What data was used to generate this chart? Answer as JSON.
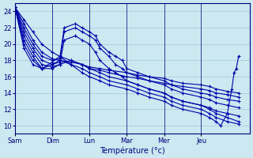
{
  "xlabel": "Température (°c)",
  "background_color": "#cce8f0",
  "grid_color": "#9fc8d8",
  "line_color": "#0000aa",
  "marker": "+",
  "markersize": 3,
  "linewidth": 0.8,
  "ylim": [
    9,
    25
  ],
  "yticks": [
    10,
    12,
    14,
    16,
    18,
    20,
    22,
    24
  ],
  "xlabel_fontsize": 7,
  "tick_fontsize": 6,
  "day_labels": [
    "Sam",
    "Dim",
    "Lun",
    "Mar",
    "Mer",
    "Jeu"
  ],
  "day_x": [
    0,
    0.167,
    0.333,
    0.5,
    0.667,
    0.833
  ],
  "series": [
    {
      "points": [
        [
          0,
          24.5
        ],
        [
          0.04,
          23.0
        ],
        [
          0.08,
          21.5
        ],
        [
          0.12,
          20.0
        ],
        [
          0.167,
          19.0
        ],
        [
          0.2,
          18.5
        ],
        [
          0.25,
          18.0
        ],
        [
          0.3,
          17.5
        ],
        [
          0.333,
          17.0
        ],
        [
          0.38,
          16.8
        ],
        [
          0.42,
          16.5
        ],
        [
          0.5,
          16.0
        ],
        [
          0.55,
          15.8
        ],
        [
          0.6,
          15.5
        ],
        [
          0.667,
          15.2
        ],
        [
          0.7,
          15.0
        ],
        [
          0.75,
          14.8
        ],
        [
          0.833,
          14.5
        ],
        [
          0.87,
          14.3
        ],
        [
          0.9,
          14.0
        ],
        [
          0.95,
          13.8
        ],
        [
          1.0,
          13.5
        ]
      ]
    },
    {
      "points": [
        [
          0,
          24.5
        ],
        [
          0.04,
          22.5
        ],
        [
          0.08,
          20.5
        ],
        [
          0.12,
          19.0
        ],
        [
          0.167,
          18.2
        ],
        [
          0.2,
          18.0
        ],
        [
          0.25,
          17.8
        ],
        [
          0.3,
          17.5
        ],
        [
          0.333,
          17.2
        ],
        [
          0.38,
          17.0
        ],
        [
          0.42,
          16.8
        ],
        [
          0.5,
          16.5
        ],
        [
          0.55,
          16.2
        ],
        [
          0.6,
          16.0
        ],
        [
          0.667,
          15.8
        ],
        [
          0.7,
          15.5
        ],
        [
          0.75,
          15.2
        ],
        [
          0.833,
          15.0
        ],
        [
          0.87,
          14.8
        ],
        [
          0.9,
          14.5
        ],
        [
          0.95,
          14.2
        ],
        [
          1.0,
          14.0
        ]
      ]
    },
    {
      "points": [
        [
          0,
          24.5
        ],
        [
          0.04,
          22.0
        ],
        [
          0.08,
          20.0
        ],
        [
          0.12,
          18.5
        ],
        [
          0.167,
          18.0
        ],
        [
          0.2,
          18.2
        ],
        [
          0.22,
          22.0
        ],
        [
          0.27,
          22.5
        ],
        [
          0.3,
          22.0
        ],
        [
          0.333,
          21.5
        ],
        [
          0.36,
          21.0
        ],
        [
          0.38,
          20.0
        ],
        [
          0.42,
          19.0
        ],
        [
          0.45,
          18.5
        ],
        [
          0.48,
          18.0
        ],
        [
          0.5,
          17.0
        ],
        [
          0.55,
          16.5
        ],
        [
          0.6,
          16.0
        ],
        [
          0.667,
          15.5
        ],
        [
          0.7,
          15.0
        ],
        [
          0.75,
          14.5
        ],
        [
          0.833,
          14.0
        ],
        [
          0.87,
          13.8
        ],
        [
          0.9,
          13.5
        ],
        [
          0.95,
          13.2
        ],
        [
          1.0,
          13.0
        ]
      ]
    },
    {
      "points": [
        [
          0,
          24.5
        ],
        [
          0.04,
          21.5
        ],
        [
          0.08,
          19.5
        ],
        [
          0.12,
          18.0
        ],
        [
          0.167,
          17.5
        ],
        [
          0.2,
          17.8
        ],
        [
          0.22,
          21.5
        ],
        [
          0.27,
          22.0
        ],
        [
          0.3,
          21.5
        ],
        [
          0.333,
          21.0
        ],
        [
          0.36,
          20.5
        ],
        [
          0.38,
          19.5
        ],
        [
          0.42,
          18.5
        ],
        [
          0.45,
          17.5
        ],
        [
          0.48,
          17.0
        ],
        [
          0.5,
          16.5
        ],
        [
          0.55,
          16.0
        ],
        [
          0.6,
          15.5
        ],
        [
          0.667,
          15.0
        ],
        [
          0.7,
          14.5
        ],
        [
          0.75,
          14.0
        ],
        [
          0.833,
          13.5
        ],
        [
          0.87,
          13.2
        ],
        [
          0.9,
          12.8
        ],
        [
          0.95,
          12.5
        ],
        [
          1.0,
          12.2
        ]
      ]
    },
    {
      "points": [
        [
          0,
          24.5
        ],
        [
          0.04,
          21.0
        ],
        [
          0.08,
          19.0
        ],
        [
          0.12,
          17.5
        ],
        [
          0.167,
          17.2
        ],
        [
          0.2,
          17.5
        ],
        [
          0.22,
          20.5
        ],
        [
          0.27,
          21.0
        ],
        [
          0.3,
          20.5
        ],
        [
          0.333,
          20.0
        ],
        [
          0.36,
          19.0
        ],
        [
          0.38,
          18.0
        ],
        [
          0.42,
          17.0
        ],
        [
          0.45,
          16.5
        ],
        [
          0.48,
          16.0
        ],
        [
          0.5,
          15.5
        ],
        [
          0.55,
          15.0
        ],
        [
          0.6,
          14.5
        ],
        [
          0.667,
          14.0
        ],
        [
          0.7,
          13.5
        ],
        [
          0.75,
          13.0
        ],
        [
          0.833,
          12.5
        ],
        [
          0.87,
          12.2
        ],
        [
          0.9,
          11.8
        ],
        [
          0.95,
          11.5
        ],
        [
          1.0,
          11.2
        ]
      ]
    },
    {
      "points": [
        [
          0,
          24.5
        ],
        [
          0.04,
          20.5
        ],
        [
          0.08,
          18.5
        ],
        [
          0.12,
          17.0
        ],
        [
          0.167,
          17.0
        ],
        [
          0.2,
          17.5
        ],
        [
          0.25,
          18.0
        ],
        [
          0.3,
          17.5
        ],
        [
          0.333,
          17.0
        ],
        [
          0.38,
          16.5
        ],
        [
          0.42,
          16.0
        ],
        [
          0.5,
          15.5
        ],
        [
          0.55,
          15.0
        ],
        [
          0.6,
          14.5
        ],
        [
          0.667,
          14.0
        ],
        [
          0.7,
          13.5
        ],
        [
          0.75,
          13.0
        ],
        [
          0.833,
          12.5
        ],
        [
          0.87,
          12.0
        ],
        [
          0.9,
          11.5
        ],
        [
          0.95,
          11.0
        ],
        [
          1.0,
          10.5
        ]
      ]
    },
    {
      "points": [
        [
          0,
          24.5
        ],
        [
          0.04,
          20.0
        ],
        [
          0.08,
          18.0
        ],
        [
          0.12,
          17.0
        ],
        [
          0.167,
          17.5
        ],
        [
          0.2,
          18.0
        ],
        [
          0.25,
          17.5
        ],
        [
          0.3,
          17.0
        ],
        [
          0.333,
          16.5
        ],
        [
          0.38,
          16.0
        ],
        [
          0.42,
          15.5
        ],
        [
          0.5,
          15.0
        ],
        [
          0.55,
          14.5
        ],
        [
          0.6,
          14.0
        ],
        [
          0.667,
          13.5
        ],
        [
          0.7,
          13.0
        ],
        [
          0.75,
          12.5
        ],
        [
          0.833,
          12.0
        ],
        [
          0.87,
          11.5
        ],
        [
          0.9,
          11.0
        ],
        [
          0.95,
          10.5
        ],
        [
          1.0,
          10.2
        ]
      ]
    },
    {
      "points": [
        [
          0,
          24.5
        ],
        [
          0.04,
          19.5
        ],
        [
          0.08,
          17.5
        ],
        [
          0.12,
          17.0
        ],
        [
          0.167,
          17.8
        ],
        [
          0.2,
          18.5
        ],
        [
          0.25,
          17.5
        ],
        [
          0.3,
          16.5
        ],
        [
          0.333,
          16.0
        ],
        [
          0.38,
          15.5
        ],
        [
          0.42,
          15.0
        ],
        [
          0.5,
          14.5
        ],
        [
          0.55,
          14.0
        ],
        [
          0.6,
          13.5
        ],
        [
          0.667,
          13.0
        ],
        [
          0.7,
          12.5
        ],
        [
          0.75,
          12.0
        ],
        [
          0.833,
          11.5
        ],
        [
          0.87,
          11.0
        ],
        [
          0.9,
          10.5
        ],
        [
          0.92,
          10.0
        ],
        [
          0.95,
          11.5
        ],
        [
          0.97,
          14.5
        ],
        [
          0.98,
          16.5
        ],
        [
          0.99,
          17.0
        ],
        [
          1.0,
          18.5
        ]
      ]
    }
  ]
}
